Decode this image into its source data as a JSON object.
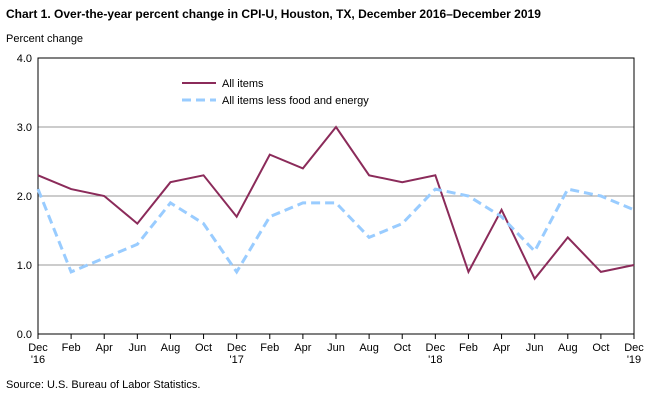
{
  "chart_data": {
    "type": "line",
    "title": "Chart 1. Over-the-year percent change in CPI-U, Houston,  TX, December 2016–December 2019",
    "y_label": "Percent change",
    "source": "Source: U.S. Bureau of Labor Statistics.",
    "categories": [
      "Dec '16",
      "Feb",
      "Apr",
      "Jun",
      "Aug",
      "Oct",
      "Dec '17",
      "Feb",
      "Apr",
      "Jun",
      "Aug",
      "Oct",
      "Dec '18",
      "Feb",
      "Apr",
      "Jun",
      "Aug",
      "Oct",
      "Dec '19"
    ],
    "series": [
      {
        "name": "All items",
        "color": "#8b2b5a",
        "dashed": false,
        "values": [
          2.3,
          2.1,
          2.0,
          1.6,
          2.2,
          2.3,
          1.7,
          2.6,
          2.4,
          3.0,
          2.3,
          2.2,
          2.3,
          0.9,
          1.8,
          0.8,
          1.4,
          0.9,
          1.0
        ]
      },
      {
        "name": "All items less food and energy",
        "color": "#99ccff",
        "dashed": true,
        "values": [
          2.1,
          0.9,
          1.1,
          1.3,
          1.9,
          1.6,
          0.9,
          1.7,
          1.9,
          1.9,
          1.4,
          1.6,
          2.1,
          2.0,
          1.7,
          1.2,
          2.1,
          2.0,
          1.8
        ]
      }
    ],
    "ylim": [
      0,
      4
    ],
    "yticks": [
      {
        "value": 0,
        "label": "0.0"
      },
      {
        "value": 1,
        "label": "1.0"
      },
      {
        "value": 2,
        "label": "2.0"
      },
      {
        "value": 3,
        "label": "3.0"
      },
      {
        "value": 4,
        "label": "4.0"
      }
    ],
    "grid": true
  }
}
